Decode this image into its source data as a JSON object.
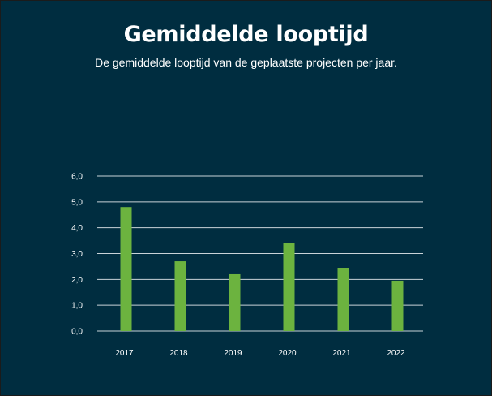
{
  "chart_data": {
    "type": "bar",
    "title": "Gemiddelde looptijd",
    "subtitle": "De gemiddelde looptijd van de geplaatste projecten per jaar.",
    "categories": [
      "2017",
      "2018",
      "2019",
      "2020",
      "2021",
      "2022"
    ],
    "values": [
      4.8,
      2.7,
      2.2,
      3.4,
      2.45,
      1.95
    ],
    "ylim": [
      0,
      6
    ],
    "yticks": [
      "0,0",
      "1,0",
      "2,0",
      "3,0",
      "4,0",
      "5,0",
      "6,0"
    ],
    "grid": true,
    "colors": {
      "background": "#002d40",
      "bar": "#6cb33f",
      "grid": "#c9d3d8",
      "text": "#ffffff"
    }
  }
}
